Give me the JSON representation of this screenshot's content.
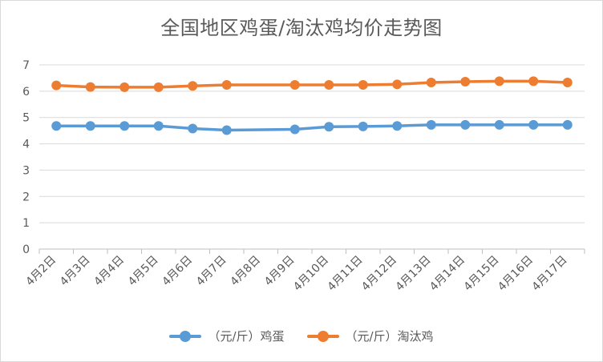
{
  "chart_data": {
    "type": "line",
    "title": "全国地区鸡蛋/淘汰鸡均价走势图",
    "categories": [
      "4月2日",
      "4月3日",
      "4月4日",
      "4月5日",
      "4月6日",
      "4月7日",
      "4月8日",
      "4月9日",
      "4月10日",
      "4月11日",
      "4月12日",
      "4月13日",
      "4月14日",
      "4月15日",
      "4月16日",
      "4月17日"
    ],
    "series": [
      {
        "name": "（元/斤）鸡蛋",
        "color": "#5b9bd5",
        "x": [
          "4月2日",
          "4月3日",
          "4月4日",
          "4月5日",
          "4月6日",
          "4月7日",
          "4月9日",
          "4月10日",
          "4月11日",
          "4月12日",
          "4月13日",
          "4月14日",
          "4月15日",
          "4月16日",
          "4月17日"
        ],
        "values": [
          4.68,
          4.68,
          4.68,
          4.68,
          4.58,
          4.52,
          4.55,
          4.65,
          4.66,
          4.68,
          4.72,
          4.72,
          4.72,
          4.72,
          4.72
        ]
      },
      {
        "name": "（元/斤）淘汰鸡",
        "color": "#ed7d31",
        "x": [
          "4月2日",
          "4月3日",
          "4月4日",
          "4月5日",
          "4月6日",
          "4月7日",
          "4月9日",
          "4月10日",
          "4月11日",
          "4月12日",
          "4月13日",
          "4月14日",
          "4月15日",
          "4月16日",
          "4月17日"
        ],
        "values": [
          6.22,
          6.16,
          6.15,
          6.15,
          6.2,
          6.24,
          6.24,
          6.24,
          6.24,
          6.26,
          6.33,
          6.36,
          6.38,
          6.38,
          6.33
        ]
      }
    ],
    "ylim": [
      0,
      7
    ],
    "yticks": [
      0,
      1,
      2,
      3,
      4,
      5,
      6,
      7
    ],
    "grid": true,
    "legend": "bottom"
  }
}
